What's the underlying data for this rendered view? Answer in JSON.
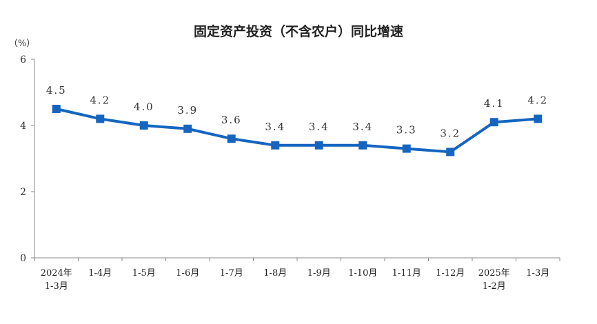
{
  "chart_data": {
    "type": "line",
    "title": "固定资产投资（不含农户）同比增速",
    "ylabel": "（%）",
    "ylim": [
      0,
      6
    ],
    "yticks": [
      "0",
      "2",
      "4",
      "6"
    ],
    "categories": [
      [
        "2024年",
        "1-3月"
      ],
      [
        "1-4月"
      ],
      [
        "1-5月"
      ],
      [
        "1-6月"
      ],
      [
        "1-7月"
      ],
      [
        "1-8月"
      ],
      [
        "1-9月"
      ],
      [
        "1-10月"
      ],
      [
        "1-11月"
      ],
      [
        "1-12月"
      ],
      [
        "2025年",
        "1-2月"
      ],
      [
        "1-3月"
      ]
    ],
    "values": [
      4.5,
      4.2,
      4.0,
      3.9,
      3.6,
      3.4,
      3.4,
      3.4,
      3.3,
      3.2,
      4.1,
      4.2
    ],
    "data_labels": [
      "4.5",
      "4.2",
      "4.0",
      "3.9",
      "3.6",
      "3.4",
      "3.4",
      "3.4",
      "3.3",
      "3.2",
      "4.1",
      "4.2"
    ],
    "line_color": "#1565c0",
    "grid": false
  }
}
